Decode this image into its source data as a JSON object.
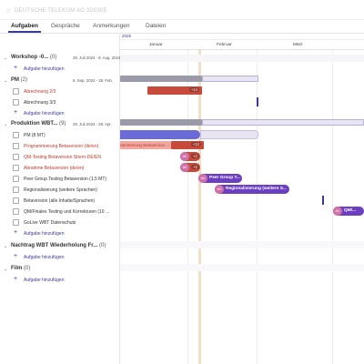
{
  "header": {
    "title": "DEUTSCHE TELEKOM AG 3D0305",
    "star_icon": "star-icon"
  },
  "tabs": [
    {
      "label": "Aufgaben",
      "active": true
    },
    {
      "label": "Gespräche",
      "active": false
    },
    {
      "label": "Anmerkungen",
      "active": false
    },
    {
      "label": "Dateien",
      "active": false
    }
  ],
  "timeline": {
    "year": "2025",
    "months": [
      "Januar",
      "Februar",
      "März"
    ]
  },
  "groups": {
    "workshop": {
      "name": "Workshop -0...",
      "count": "(0)",
      "dates": "29. Juli 2024 - 9. Aug. 2024",
      "add": "Aufgabe hinzufügen"
    },
    "pm": {
      "name": "PM",
      "count": "(2)",
      "dates": "6. Sep. 2024 - 28. Feb.",
      "tasks": [
        "Abrechnung 2/3",
        "Abrechnung 3/3"
      ],
      "add": "Aufgabe hinzufügen"
    },
    "produktion": {
      "name": "Produktion WBT...",
      "count": "(9)",
      "dates": "29. Juli 2024 - 28. Apr.",
      "tasks": [
        "PM (8 MT)",
        "Programmierung Betaversion (de/en)",
        "QM-Testing Betaversion Storm-DE/EN",
        "Abnahme Betaversion (de/en)",
        "Peer Group Testing Betaversion (1,5 MT)",
        "Regionalisierung (weitere Sprachen)",
        "Betaversion (alle Inhalte/Sprachen)",
        "QM/Finales Testing und Korrekturen (10 ...",
        "GoLive WBT Datenschutz"
      ],
      "add": "Aufgabe hinzufügen"
    },
    "nachtrag": {
      "name": "Nachtrag WBT Wiederholung Fr...",
      "count": "(0)",
      "add": "Aufgabe hinzufügen"
    },
    "film": {
      "name": "Film",
      "count": "(0)",
      "add": "Aufgabe hinzufügen"
    }
  },
  "gantt": {
    "abrechnung_badge": "+14",
    "prog_label": "rammierung Betaversion...",
    "prog_badge": "+12",
    "qm_avatar": "AV",
    "qm_badge": "+2",
    "abnahme_avatar": "AV",
    "abnahme_badge": "+2",
    "peer_avatar": "AV",
    "peer_label": "Peer Group T...",
    "regional_avatar": "AV",
    "regional_label": "Regionalisierung (weitere S...",
    "qmfinal_avatar": "AV",
    "qmfinal_label": "QM/..."
  },
  "colors": {
    "accent": "#3a3a9a",
    "red": "#c0392b",
    "blue": "#6a6ad8",
    "pink": "#d060a0",
    "purple": "#6b3fc0",
    "gray": "#9a9aa8"
  }
}
